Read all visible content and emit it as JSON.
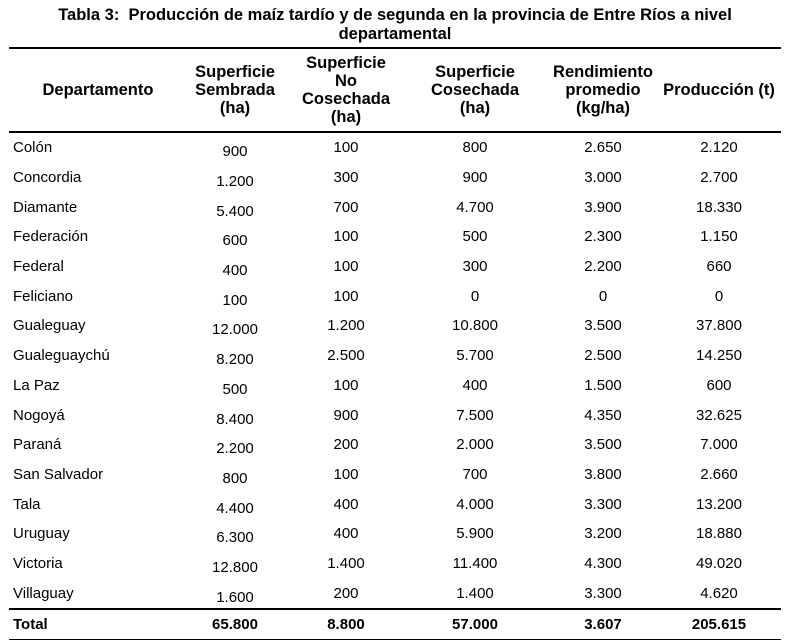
{
  "title": {
    "text": "Tabla 3:  Producción de maíz tardío y de segunda en la provincia de Entre Ríos a nivel\ndepartamental"
  },
  "table": {
    "columns": [
      {
        "label": "Departamento"
      },
      {
        "label": "Superficie\nSembrada\n(ha)"
      },
      {
        "label": "Superficie\nNo\nCosechada\n(ha)"
      },
      {
        "label": "Superficie\nCosechada\n(ha)"
      },
      {
        "label": "Rendimiento\npromedio\n(kg/ha)"
      },
      {
        "label": "Producción (t)"
      }
    ],
    "rows": [
      {
        "dept": "Colón",
        "sembrada": "900",
        "no_cosechada": "100",
        "cosechada": "800",
        "rendimiento": "2.650",
        "produccion": "2.120"
      },
      {
        "dept": "Concordia",
        "sembrada": "1.200",
        "no_cosechada": "300",
        "cosechada": "900",
        "rendimiento": "3.000",
        "produccion": "2.700"
      },
      {
        "dept": "Diamante",
        "sembrada": "5.400",
        "no_cosechada": "700",
        "cosechada": "4.700",
        "rendimiento": "3.900",
        "produccion": "18.330"
      },
      {
        "dept": "Federación",
        "sembrada": "600",
        "no_cosechada": "100",
        "cosechada": "500",
        "rendimiento": "2.300",
        "produccion": "1.150"
      },
      {
        "dept": "Federal",
        "sembrada": "400",
        "no_cosechada": "100",
        "cosechada": "300",
        "rendimiento": "2.200",
        "produccion": "660"
      },
      {
        "dept": "Feliciano",
        "sembrada": "100",
        "no_cosechada": "100",
        "cosechada": "0",
        "rendimiento": "0",
        "produccion": "0"
      },
      {
        "dept": "Gualeguay",
        "sembrada": "12.000",
        "no_cosechada": "1.200",
        "cosechada": "10.800",
        "rendimiento": "3.500",
        "produccion": "37.800"
      },
      {
        "dept": "Gualeguaychú",
        "sembrada": "8.200",
        "no_cosechada": "2.500",
        "cosechada": "5.700",
        "rendimiento": "2.500",
        "produccion": "14.250"
      },
      {
        "dept": "La Paz",
        "sembrada": "500",
        "no_cosechada": "100",
        "cosechada": "400",
        "rendimiento": "1.500",
        "produccion": "600"
      },
      {
        "dept": "Nogoyá",
        "sembrada": "8.400",
        "no_cosechada": "900",
        "cosechada": "7.500",
        "rendimiento": "4.350",
        "produccion": "32.625"
      },
      {
        "dept": "Paraná",
        "sembrada": "2.200",
        "no_cosechada": "200",
        "cosechada": "2.000",
        "rendimiento": "3.500",
        "produccion": "7.000"
      },
      {
        "dept": "San Salvador",
        "sembrada": "800",
        "no_cosechada": "100",
        "cosechada": "700",
        "rendimiento": "3.800",
        "produccion": "2.660"
      },
      {
        "dept": "Tala",
        "sembrada": "4.400",
        "no_cosechada": "400",
        "cosechada": "4.000",
        "rendimiento": "3.300",
        "produccion": "13.200"
      },
      {
        "dept": "Uruguay",
        "sembrada": "6.300",
        "no_cosechada": "400",
        "cosechada": "5.900",
        "rendimiento": "3.200",
        "produccion": "18.880"
      },
      {
        "dept": "Victoria",
        "sembrada": "12.800",
        "no_cosechada": "1.400",
        "cosechada": "11.400",
        "rendimiento": "4.300",
        "produccion": "49.020"
      },
      {
        "dept": "Villaguay",
        "sembrada": "1.600",
        "no_cosechada": "200",
        "cosechada": "1.400",
        "rendimiento": "3.300",
        "produccion": "4.620"
      }
    ],
    "total": {
      "dept": "Total",
      "sembrada": "65.800",
      "no_cosechada": "8.800",
      "cosechada": "57.000",
      "rendimiento": "3.607",
      "produccion": "205.615"
    }
  }
}
